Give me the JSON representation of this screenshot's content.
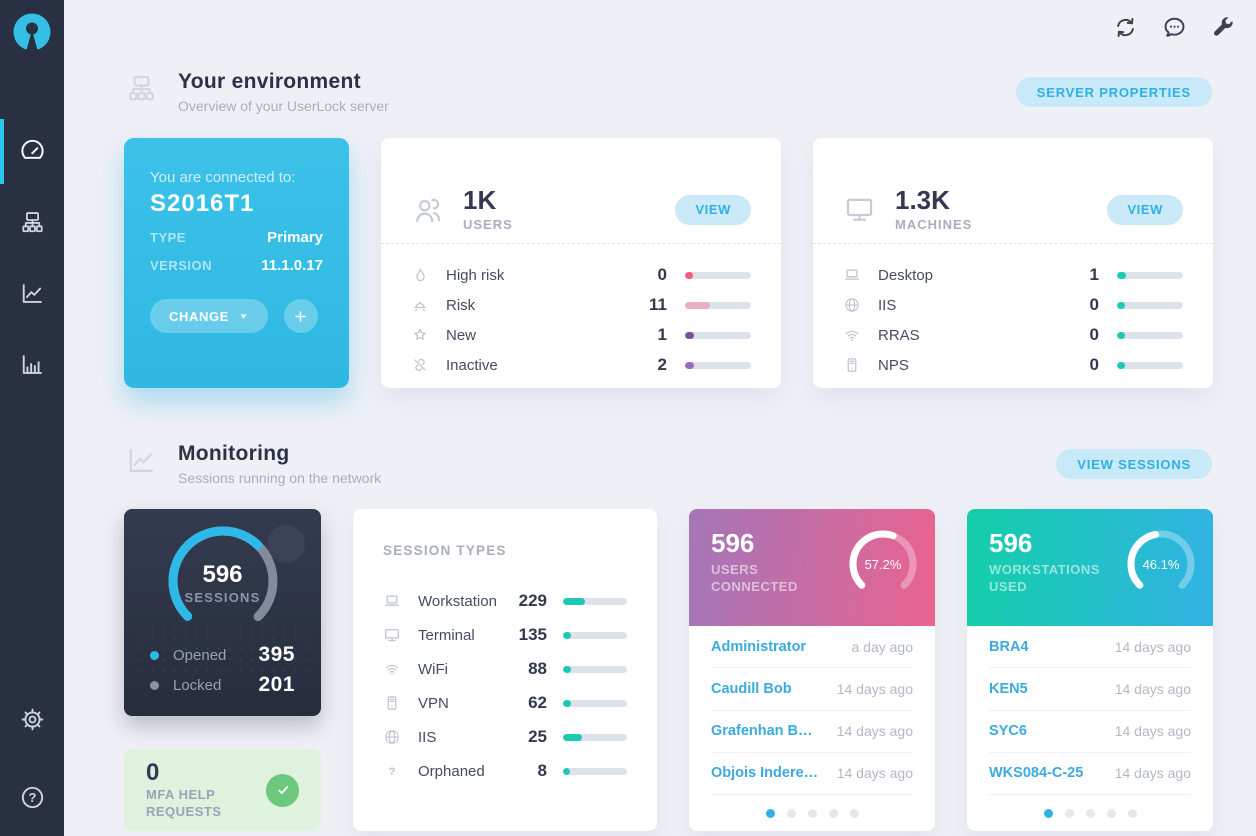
{
  "colors": {
    "accent_cyan": "#2fb3e2",
    "teal_bar": "#1ec9b2",
    "status_high_risk": "#f25e7f",
    "status_risk": "#e9afc7",
    "status_new": "#7b4fa0",
    "status_inactive": "#9a6db6",
    "opened_dot": "#2fb9e8",
    "locked_dot": "#8a93a3",
    "mfa_green": "#6bc87d"
  },
  "sidebar": {
    "items": [
      {
        "icon": "dashboard-icon",
        "active": true
      },
      {
        "icon": "servers-icon",
        "active": false
      },
      {
        "icon": "monitoring-icon",
        "active": false
      },
      {
        "icon": "reports-icon",
        "active": false
      }
    ],
    "bottom_items": [
      {
        "icon": "settings-icon"
      },
      {
        "icon": "help-icon"
      }
    ]
  },
  "topbar": {
    "icons": [
      "refresh-icon",
      "chat-icon",
      "tools-icon"
    ]
  },
  "environment": {
    "title": "Your environment",
    "subtitle": "Overview of your UserLock server",
    "server_properties_label": "SERVER PROPERTIES",
    "server_card": {
      "connected_label": "You are connected to:",
      "server_name": "S2016T1",
      "type_label": "TYPE",
      "type_value": "Primary",
      "version_label": "VERSION",
      "version_value": "11.1.0.17",
      "change_label": "CHANGE"
    },
    "users_card": {
      "count": "1K",
      "label": "USERS",
      "view_label": "VIEW",
      "rows": [
        {
          "icon": "flame-icon",
          "label": "High risk",
          "value": "0",
          "bar_pct": 12,
          "bar_color": "#f25e7f"
        },
        {
          "icon": "alarm-icon",
          "label": "Risk",
          "value": "11",
          "bar_pct": 38,
          "bar_color": "#e9afc7"
        },
        {
          "icon": "star-icon",
          "label": "New",
          "value": "1",
          "bar_pct": 13,
          "bar_color": "#7b4fa0"
        },
        {
          "icon": "unlink-icon",
          "label": "Inactive",
          "value": "2",
          "bar_pct": 14,
          "bar_color": "#9a6db6"
        }
      ]
    },
    "machines_card": {
      "count": "1.3K",
      "label": "MACHINES",
      "view_label": "VIEW",
      "rows": [
        {
          "icon": "desktop-icon",
          "label": "Desktop",
          "value": "1",
          "bar_pct": 14,
          "bar_color": "#1ec9b2"
        },
        {
          "icon": "globe-icon",
          "label": "IIS",
          "value": "0",
          "bar_pct": 12,
          "bar_color": "#1ec9b2"
        },
        {
          "icon": "wifi-icon",
          "label": "RRAS",
          "value": "0",
          "bar_pct": 12,
          "bar_color": "#1ec9b2"
        },
        {
          "icon": "server-icon",
          "label": "NPS",
          "value": "0",
          "bar_pct": 12,
          "bar_color": "#1ec9b2"
        }
      ]
    }
  },
  "monitoring": {
    "title": "Monitoring",
    "subtitle": "Sessions running on the network",
    "view_sessions_label": "VIEW SESSIONS",
    "sessions_card": {
      "total": "596",
      "label": "SESSIONS",
      "gauge_pct": 66.3,
      "legend": [
        {
          "label": "Opened",
          "value": "395",
          "color": "#2fb9e8"
        },
        {
          "label": "Locked",
          "value": "201",
          "color": "#8a93a3"
        }
      ]
    },
    "mfa_card": {
      "count": "0",
      "label": "MFA HELP REQUESTS"
    },
    "session_types": {
      "title": "SESSION TYPES",
      "bar_color": "#1ec9b2",
      "rows": [
        {
          "icon": "desktop-icon",
          "label": "Workstation",
          "value": "229",
          "bar_pct": 34
        },
        {
          "icon": "terminal-icon",
          "label": "Terminal",
          "value": "135",
          "bar_pct": 12
        },
        {
          "icon": "wifi-icon",
          "label": "WiFi",
          "value": "88",
          "bar_pct": 12
        },
        {
          "icon": "server-icon",
          "label": "VPN",
          "value": "62",
          "bar_pct": 12
        },
        {
          "icon": "globe-icon",
          "label": "IIS",
          "value": "25",
          "bar_pct": 29
        },
        {
          "icon": "question-icon",
          "label": "Orphaned",
          "value": "8",
          "bar_pct": 11
        }
      ]
    },
    "users_connected": {
      "count": "596",
      "label": "USERS CONNECTED",
      "gauge_pct": 57.2,
      "gauge_label": "57.2%",
      "items": [
        {
          "name": "Administrator",
          "time": "a day ago"
        },
        {
          "name": "Caudill Bob",
          "time": "14 days ago"
        },
        {
          "name": "Grafenhan B…",
          "time": "14 days ago"
        },
        {
          "name": "Objois Indere…",
          "time": "14 days ago"
        }
      ]
    },
    "workstations_used": {
      "count": "596",
      "label": "WORKSTATIONS USED",
      "gauge_pct": 46.1,
      "gauge_label": "46.1%",
      "items": [
        {
          "name": "BRA4",
          "time": "14 days ago"
        },
        {
          "name": "KEN5",
          "time": "14 days ago"
        },
        {
          "name": "SYC6",
          "time": "14 days ago"
        },
        {
          "name": "WKS084-C-25",
          "time": "14 days ago"
        }
      ]
    }
  }
}
